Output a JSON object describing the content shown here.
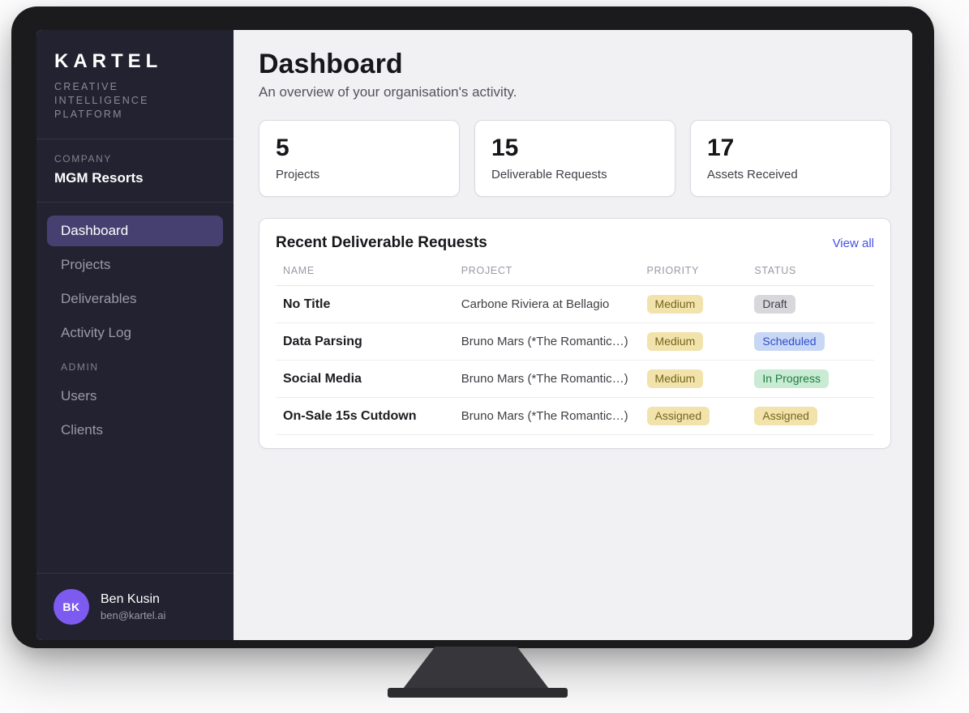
{
  "colors": {
    "accent": "#4350e6",
    "sidebar_bg": "#222230",
    "nav_active_bg": "#45406f",
    "avatar_bg": "#7d5bf0",
    "main_bg": "#f1f1f4",
    "badge_amber_bg": "#f1e3ab",
    "badge_gray_bg": "#d7d7dc",
    "badge_blue_bg": "#c8d7f4",
    "badge_green_bg": "#c9ebd3"
  },
  "sidebar": {
    "logo": "KARTEL",
    "tagline_line1": "CREATIVE INTELLIGENCE",
    "tagline_line2": "PLATFORM",
    "company_label": "COMPANY",
    "company_name": "MGM Resorts",
    "nav": [
      {
        "label": "Dashboard",
        "active": true
      },
      {
        "label": "Projects",
        "active": false
      },
      {
        "label": "Deliverables",
        "active": false
      },
      {
        "label": "Activity Log",
        "active": false
      }
    ],
    "admin_label": "ADMIN",
    "admin_nav": [
      {
        "label": "Users"
      },
      {
        "label": "Clients"
      }
    ],
    "user": {
      "initials": "BK",
      "name": "Ben Kusin",
      "email": "ben@kartel.ai"
    }
  },
  "header": {
    "title": "Dashboard",
    "subtitle": "An overview of your organisation's activity."
  },
  "stats": [
    {
      "value": "5",
      "label": "Projects"
    },
    {
      "value": "15",
      "label": "Deliverable Requests"
    },
    {
      "value": "17",
      "label": "Assets Received"
    }
  ],
  "table": {
    "title": "Recent Deliverable Requests",
    "view_all": "View all",
    "headers": [
      "NAME",
      "PROJECT",
      "PRIORITY",
      "STATUS"
    ],
    "rows": [
      {
        "name": "No Title",
        "project": "Carbone Riviera at Bellagio",
        "priority": "Medium",
        "priority_class": "badge badge-amber",
        "status": "Draft",
        "status_class": "badge badge-gray"
      },
      {
        "name": "Data Parsing",
        "project": "Bruno Mars (*The Romantic…)",
        "priority": "Medium",
        "priority_class": "badge badge-amber",
        "status": "Scheduled",
        "status_class": "badge badge-blue"
      },
      {
        "name": "Social Media",
        "project": "Bruno Mars (*The Romantic…)",
        "priority": "Medium",
        "priority_class": "badge badge-amber",
        "status": "In Progress",
        "status_class": "badge badge-green"
      },
      {
        "name": "On-Sale 15s Cutdown",
        "project": "Bruno Mars (*The Romantic…)",
        "priority": "Assigned",
        "priority_class": "badge badge-amber",
        "status": "Assigned",
        "status_class": "badge badge-amber"
      }
    ]
  }
}
